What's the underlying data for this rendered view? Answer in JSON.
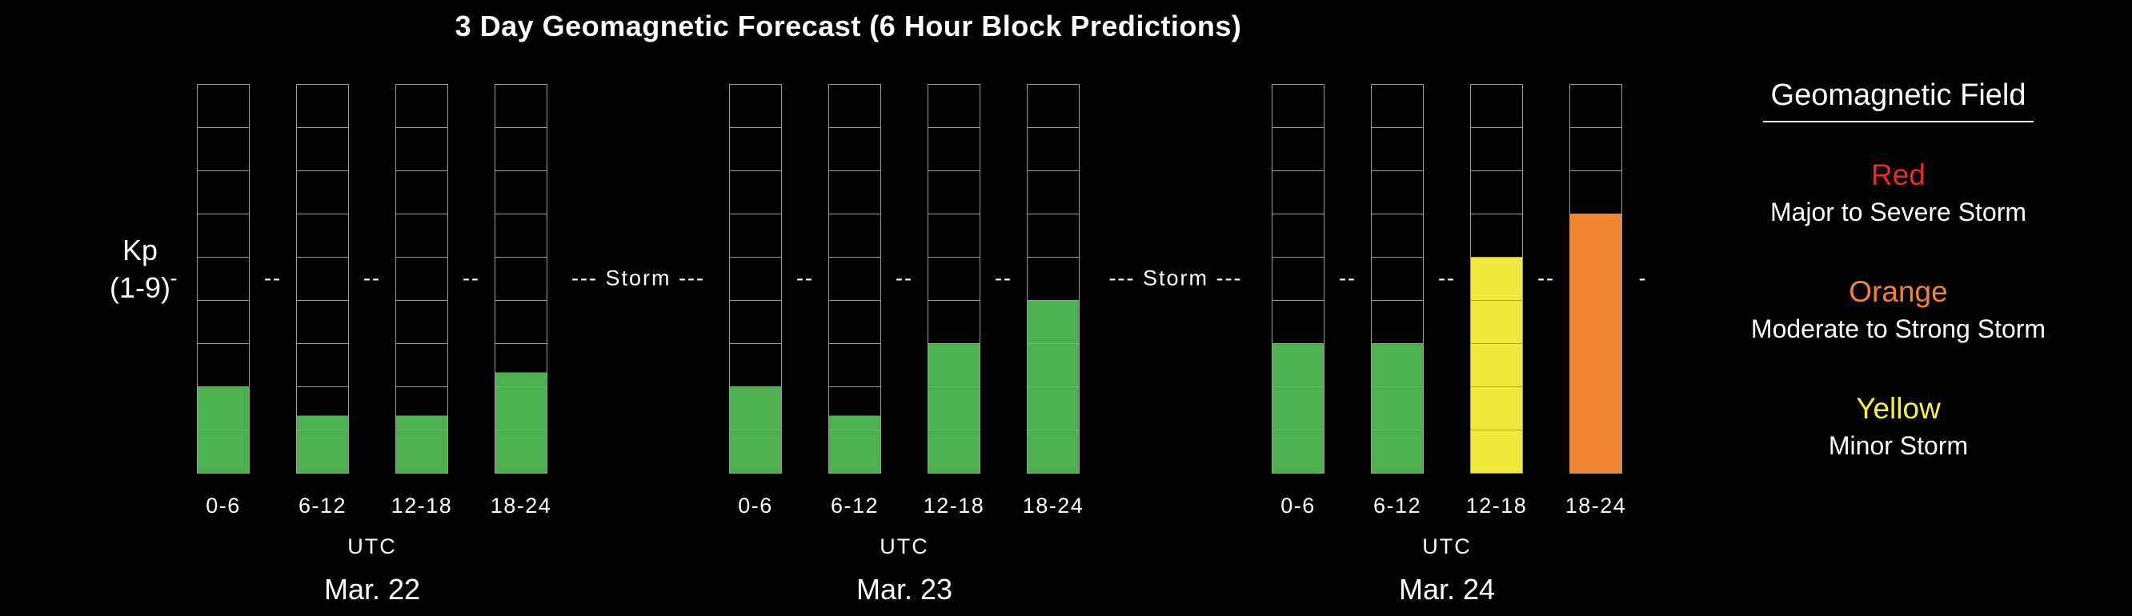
{
  "title": "3 Day Geomagnetic Forecast  (6 Hour Block Predictions)",
  "y_axis": {
    "line1": "Kp",
    "line2": "(1-9)"
  },
  "chart_data": {
    "type": "bar",
    "title": "3 Day Geomagnetic Forecast  (6 Hour Block Predictions)",
    "ylabel": "Kp (1-9)",
    "ylim": [
      0,
      9
    ],
    "segments_per_bar": 9,
    "storm_threshold_kp": 5,
    "grid": true,
    "legend_position": "right",
    "groups": [
      {
        "date": "Mar. 22",
        "utc_label": "UTC",
        "categories": [
          "0-6",
          "6-12",
          "12-18",
          "18-24"
        ],
        "values": [
          2,
          1.33,
          1.33,
          2.33
        ],
        "colors": [
          "green",
          "green",
          "green",
          "green"
        ]
      },
      {
        "date": "Mar. 23",
        "utc_label": "UTC",
        "categories": [
          "0-6",
          "6-12",
          "12-18",
          "18-24"
        ],
        "values": [
          2,
          1.33,
          3,
          4
        ],
        "colors": [
          "green",
          "green",
          "green",
          "green"
        ]
      },
      {
        "date": "Mar. 24",
        "utc_label": "UTC",
        "categories": [
          "0-6",
          "6-12",
          "12-18",
          "18-24"
        ],
        "values": [
          3,
          3,
          5,
          6
        ],
        "colors": [
          "green",
          "green",
          "yellow",
          "orange"
        ]
      }
    ],
    "storm_markers": {
      "edge": "-",
      "between": "--",
      "gap_label": "--- Storm ---"
    }
  },
  "legend": {
    "heading": "Geomagnetic Field",
    "items": [
      {
        "name": "Red",
        "color": "#ea2c1f",
        "description": "Major to Severe Storm"
      },
      {
        "name": "Orange",
        "color": "#f08433",
        "description": "Moderate to Strong Storm"
      },
      {
        "name": "Yellow",
        "color": "#f5ef3d",
        "description": "Minor Storm"
      }
    ]
  },
  "colors": {
    "green": "#4caf50",
    "yellow": "#f2e93f",
    "orange": "#ef8633",
    "grid": "#999999",
    "background": "#000000",
    "text": "#ffffff"
  }
}
